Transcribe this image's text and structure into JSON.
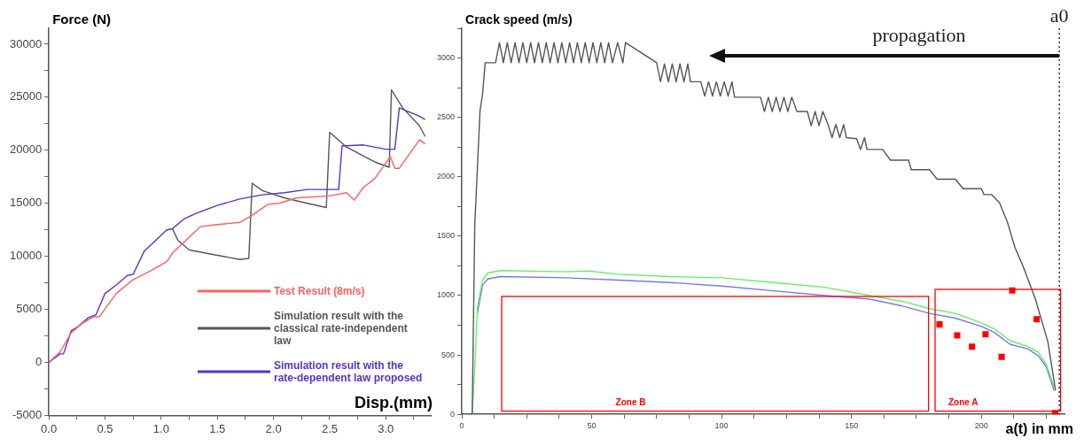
{
  "chart_data": [
    {
      "type": "line",
      "ylabel": "Force (N)",
      "xlabel": "Disp.(mm)",
      "xlim": [
        0,
        3.4
      ],
      "xticks": [
        {
          "value": 0,
          "label": "0.0"
        },
        {
          "value": 0.25,
          "label": null
        },
        {
          "value": 0.5,
          "label": "0.5"
        },
        {
          "value": 0.75,
          "label": null
        },
        {
          "value": 1,
          "label": "1.0"
        },
        {
          "value": 1.25,
          "label": null
        },
        {
          "value": 1.5,
          "label": "1.5"
        },
        {
          "value": 1.75,
          "label": null
        },
        {
          "value": 2,
          "label": "2.0"
        },
        {
          "value": 2.25,
          "label": null
        },
        {
          "value": 2.5,
          "label": "2.5"
        },
        {
          "value": 2.75,
          "label": null
        },
        {
          "value": 3,
          "label": "3.0"
        },
        {
          "value": 3.25,
          "label": null
        }
      ],
      "ylim": [
        -5000,
        31500
      ],
      "yticks": [
        -5000,
        {
          "value": -2500,
          "label": null
        },
        0,
        {
          "value": 2500,
          "label": null
        },
        5000,
        {
          "value": 7500,
          "label": null
        },
        10000,
        {
          "value": 12500,
          "label": null
        },
        15000,
        {
          "value": 17500,
          "label": null
        },
        20000,
        {
          "value": 22500,
          "label": null
        },
        25000,
        {
          "value": 27500,
          "label": null
        },
        30000
      ],
      "grid": false,
      "marker": "none",
      "legend": "bottom right",
      "series": [
        {
          "name": "Test Result (8m/s)",
          "color": "#ff6060",
          "x": [
            0,
            0.1,
            0.2,
            0.3,
            0.4,
            0.45,
            0.6,
            0.75,
            0.9,
            1.05,
            1.1,
            1.2,
            1.35,
            1.5,
            1.7,
            1.8,
            1.95,
            2.05,
            2.2,
            2.5,
            2.65,
            2.72,
            2.8,
            2.9,
            3.0,
            3.04,
            3.08,
            3.12,
            3.3,
            3.35
          ],
          "values": [
            0,
            1000,
            2800,
            3700,
            4300,
            4300,
            6500,
            7800,
            8600,
            9500,
            10300,
            11300,
            12800,
            13000,
            13200,
            13800,
            14900,
            15000,
            15500,
            15700,
            16000,
            15300,
            16500,
            17300,
            18800,
            19400,
            18300,
            18300,
            21000,
            20600
          ]
        },
        {
          "name": "Simulation result with the classical rate-independent law",
          "color": "#555555",
          "x": [
            1.1,
            1.15,
            1.25,
            1.5,
            1.7,
            1.78,
            1.81,
            1.9,
            2.1,
            2.3,
            2.47,
            2.5,
            2.65,
            2.9,
            3.03,
            3.05,
            3.15,
            3.3,
            3.35
          ],
          "values": [
            12600,
            11500,
            10600,
            10100,
            9700,
            9800,
            16900,
            16200,
            15500,
            15000,
            14600,
            21700,
            20300,
            18900,
            18400,
            25700,
            24000,
            22300,
            21300
          ]
        },
        {
          "name": "Simulation result with the rate-dependent law proposed",
          "color": "#5533cc",
          "x": [
            0,
            0.1,
            0.13,
            0.2,
            0.25,
            0.35,
            0.42,
            0.5,
            0.6,
            0.7,
            0.75,
            0.85,
            0.95,
            1.05,
            1.1,
            1.2,
            1.3,
            1.5,
            1.7,
            1.9,
            2.1,
            2.3,
            2.5,
            2.58,
            2.61,
            2.8,
            3.0,
            3.08,
            3.12,
            3.3,
            3.35
          ],
          "values": [
            0,
            800,
            800,
            3000,
            3300,
            4200,
            4500,
            6500,
            7300,
            8200,
            8300,
            10500,
            11500,
            12500,
            12600,
            13500,
            14000,
            14800,
            15400,
            15800,
            16000,
            16300,
            16300,
            16300,
            20400,
            20500,
            20100,
            20100,
            24000,
            23200,
            22900
          ]
        }
      ]
    },
    {
      "type": "line",
      "ylabel": "Crack speed (m/s)",
      "xlabel": "a(t) in mm",
      "xlim": [
        0,
        232
      ],
      "xticks": [
        0,
        {
          "value": 12.5,
          "label": null
        },
        {
          "value": 25,
          "label": null
        },
        {
          "value": 37.5,
          "label": null
        },
        50,
        {
          "value": 62.5,
          "label": null
        },
        {
          "value": 75,
          "label": null
        },
        {
          "value": 87.5,
          "label": null
        },
        100,
        {
          "value": 112.5,
          "label": null
        },
        {
          "value": 125,
          "label": null
        },
        {
          "value": 137.5,
          "label": null
        },
        150,
        {
          "value": 162.5,
          "label": null
        },
        {
          "value": 175,
          "label": null
        },
        {
          "value": 187.5,
          "label": null
        },
        200,
        {
          "value": 212.5,
          "label": null
        },
        {
          "value": 225,
          "label": null
        }
      ],
      "ylim": [
        0,
        3250
      ],
      "yticks": [
        0,
        {
          "value": 250,
          "label": null
        },
        500,
        {
          "value": 750,
          "label": null
        },
        1000,
        {
          "value": 1250,
          "label": null
        },
        1500,
        {
          "value": 1750,
          "label": null
        },
        2000,
        {
          "value": 2250,
          "label": null
        },
        2500,
        {
          "value": 2750,
          "label": null
        },
        3000,
        {
          "value": 3250,
          "label": null
        }
      ],
      "grid": false,
      "marker": "none",
      "ref_lines": [
        {
          "axis": "x",
          "value": 230,
          "label": "a0",
          "line_style": "dotted"
        }
      ],
      "annotations": [
        "propagation",
        "Zone B",
        "Zone A"
      ],
      "series": [
        {
          "color": "#555555",
          "x": [
            3,
            4,
            5,
            7,
            8,
            9,
            13,
            14.5,
            16,
            17.5,
            19,
            20.5,
            22,
            23.5,
            25,
            26.5,
            28,
            29.5,
            31,
            32.5,
            34,
            35.5,
            37,
            38.5,
            40,
            41.5,
            43,
            44.5,
            46,
            47.5,
            49,
            50.5,
            52,
            53.5,
            55,
            56.5,
            58,
            60,
            62,
            63,
            75,
            76.5,
            78,
            79.5,
            81,
            82.5,
            84,
            85.5,
            87,
            88,
            92,
            93.5,
            95,
            96.5,
            98,
            99.5,
            101,
            102.5,
            104,
            105,
            115,
            116.5,
            118,
            119.5,
            121,
            122.5,
            124,
            125.5,
            127,
            129,
            133,
            134.5,
            136,
            137.5,
            139,
            141,
            142.5,
            144,
            145.5,
            147,
            148,
            152,
            153.5,
            155,
            156,
            162,
            165,
            172,
            173,
            180,
            183,
            190,
            193,
            200,
            201,
            204,
            207,
            210,
            213,
            216,
            220.8,
            225.6,
            228,
            228.5
          ],
          "values": [
            0,
            0,
            1600,
            2550,
            2700,
            2960,
            2960,
            3130,
            2960,
            3130,
            2960,
            3130,
            2960,
            3130,
            2960,
            3130,
            2960,
            3130,
            2960,
            3130,
            2960,
            3130,
            2960,
            3130,
            2960,
            3130,
            2960,
            3130,
            2960,
            3130,
            2960,
            3130,
            2960,
            3130,
            2960,
            3130,
            2960,
            3130,
            2960,
            3130,
            2960,
            2800,
            2950,
            2800,
            2950,
            2800,
            2950,
            2800,
            2950,
            2800,
            2800,
            2680,
            2800,
            2680,
            2800,
            2680,
            2800,
            2680,
            2800,
            2670,
            2670,
            2550,
            2670,
            2550,
            2670,
            2550,
            2670,
            2550,
            2670,
            2550,
            2550,
            2430,
            2550,
            2430,
            2550,
            2440,
            2330,
            2440,
            2330,
            2440,
            2330,
            2320,
            2230,
            2330,
            2230,
            2230,
            2140,
            2140,
            2060,
            2060,
            1980,
            1980,
            1900,
            1900,
            1850,
            1850,
            1780,
            1620,
            1400,
            1250,
            970,
            610,
            280,
            200
          ]
        },
        {
          "color": "#66ee66",
          "x": [
            4,
            5,
            6,
            8,
            10,
            15,
            40,
            48.7,
            60,
            80,
            100,
            120,
            139.6,
            157,
            170,
            180,
            190,
            200,
            205,
            211,
            218,
            222,
            225,
            228
          ],
          "values": [
            0,
            400,
            900,
            1130,
            1190,
            1210,
            1200,
            1207,
            1180,
            1160,
            1150,
            1110,
            1070,
            1000,
            950,
            890,
            850,
            770,
            720,
            620,
            570,
            520,
            420,
            230
          ]
        },
        {
          "color": "#7777ee",
          "x": [
            6,
            8,
            10,
            15,
            40,
            60,
            80,
            100,
            120,
            140,
            157,
            170,
            180,
            190,
            200,
            205,
            211,
            218,
            222,
            225,
            228
          ],
          "values": [
            850,
            1090,
            1140,
            1160,
            1150,
            1130,
            1110,
            1080,
            1040,
            1000,
            970,
            910,
            850,
            810,
            740,
            690,
            590,
            550,
            490,
            400,
            200
          ]
        },
        {
          "type": "scatter",
          "marker": "square",
          "color": "#ff0000",
          "x": [
            183.9,
            190.7,
            196.4,
            201.6,
            207.8,
            211.9,
            221.3,
            228.4
          ],
          "values": [
            757,
            664,
            569,
            674,
            484,
            1043,
            800,
            10
          ]
        }
      ]
    }
  ]
}
